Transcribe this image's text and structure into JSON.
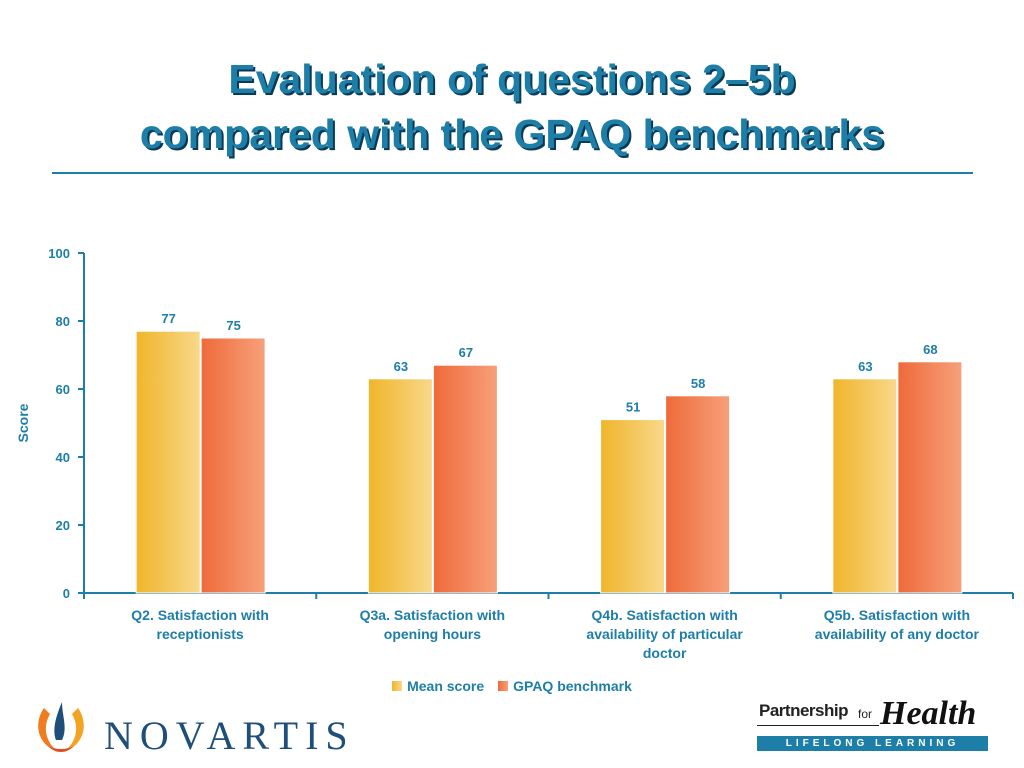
{
  "slide": {
    "title_line1": "Evaluation of questions 2–5b",
    "title_line2": "compared with the GPAQ benchmarks"
  },
  "chart_data": {
    "type": "bar",
    "categories": [
      [
        "Q2. Satisfaction with",
        "receptionists"
      ],
      [
        "Q3a. Satisfaction with",
        "opening hours"
      ],
      [
        "Q4b. Satisfaction with",
        "availability of particular",
        "doctor"
      ],
      [
        "Q5b. Satisfaction with",
        "availability of any doctor"
      ]
    ],
    "series": [
      {
        "name": "Mean score",
        "values": [
          77,
          63,
          51,
          63
        ],
        "color": "#f0b52a",
        "highlight": "#f8d88a"
      },
      {
        "name": "GPAQ benchmark",
        "values": [
          75,
          67,
          58,
          68
        ],
        "color": "#ee6a3a",
        "highlight": "#f7a07a"
      }
    ],
    "ylabel": "Score",
    "ylim": [
      0,
      100
    ],
    "yticks": [
      0,
      20,
      40,
      60,
      80,
      100
    ],
    "grid": false,
    "legend": "bottom"
  },
  "colors": {
    "accent": "#1d7ea8",
    "title_shadow": "#0b3a55"
  },
  "logos": {
    "novartis": "NOVARTIS",
    "pfh_partnership": "Partnership",
    "pfh_for": "for",
    "pfh_health": "Health",
    "pfh_tagline": "LIFELONG LEARNING"
  }
}
